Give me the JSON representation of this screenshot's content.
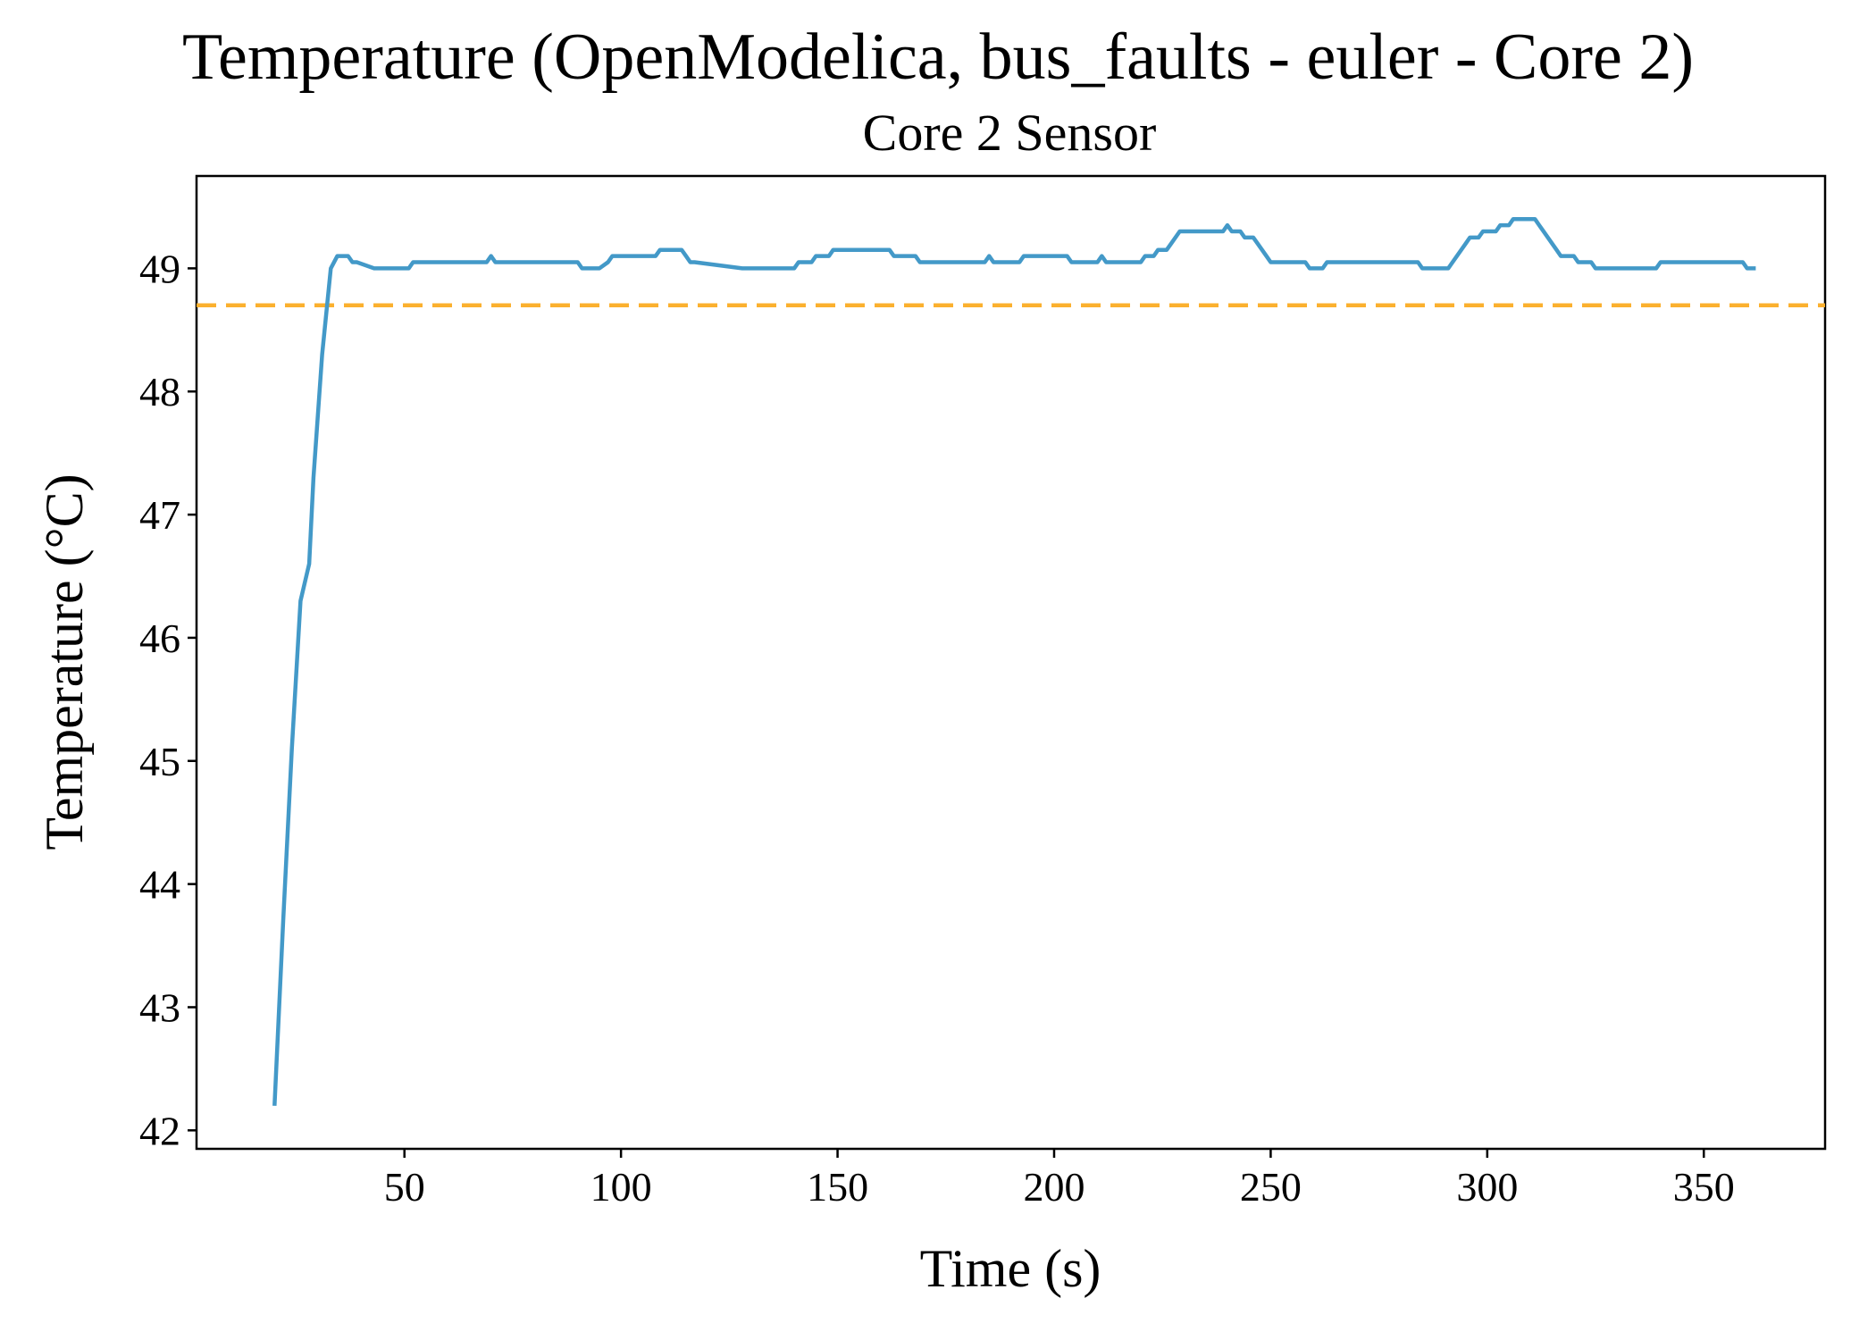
{
  "chart_data": {
    "type": "line",
    "title": "Temperature (OpenModelica, bus_faults - euler - Core 2)",
    "subtitle": "Core 2 Sensor",
    "xlabel": "Time (s)",
    "ylabel": "Temperature (°C)",
    "xlim": [
      2,
      378
    ],
    "ylim": [
      41.85,
      49.75
    ],
    "xticks": [
      50,
      100,
      150,
      200,
      250,
      300,
      350
    ],
    "yticks": [
      42,
      43,
      44,
      45,
      46,
      47,
      48,
      49
    ],
    "grid": false,
    "colors": {
      "series": "#4399c8",
      "threshold": "#fbb02e"
    },
    "threshold": {
      "y": 48.7,
      "style": "dashed"
    },
    "series": [
      {
        "x": [
          20,
          22,
          24,
          26,
          28,
          29,
          31,
          33,
          34.5,
          35.5,
          37,
          38,
          39,
          43,
          51,
          52,
          69,
          70,
          71,
          90,
          91,
          95,
          97,
          98,
          108,
          109,
          114,
          115,
          116,
          117,
          128,
          129,
          140,
          141,
          144,
          145,
          148,
          149,
          162,
          163,
          168,
          169,
          184,
          185,
          186,
          187,
          192,
          193,
          203,
          204,
          210,
          211,
          212,
          213,
          220,
          221,
          223,
          224,
          226,
          227,
          229,
          230,
          239,
          240,
          241,
          243,
          244,
          246,
          247,
          249,
          250,
          252,
          253,
          258,
          259,
          262,
          263,
          284,
          285,
          291,
          292,
          295,
          296,
          298,
          299,
          302,
          303,
          305,
          306,
          311,
          312,
          316,
          317,
          320,
          321,
          324,
          325,
          327,
          328,
          339,
          340,
          359,
          360,
          362
        ],
        "y": [
          42.2,
          43.7,
          45.1,
          46.3,
          46.6,
          47.3,
          48.3,
          49.0,
          49.1,
          49.1,
          49.1,
          49.05,
          49.05,
          49.0,
          49.0,
          49.05,
          49.05,
          49.1,
          49.05,
          49.05,
          49.0,
          49.0,
          49.05,
          49.1,
          49.1,
          49.15,
          49.15,
          49.1,
          49.05,
          49.05,
          49.0,
          49.0,
          49.0,
          49.05,
          49.05,
          49.1,
          49.1,
          49.15,
          49.15,
          49.1,
          49.1,
          49.05,
          49.05,
          49.1,
          49.05,
          49.05,
          49.05,
          49.1,
          49.1,
          49.05,
          49.05,
          49.1,
          49.05,
          49.05,
          49.05,
          49.1,
          49.1,
          49.15,
          49.15,
          49.2,
          49.3,
          49.3,
          49.3,
          49.35,
          49.3,
          49.3,
          49.25,
          49.25,
          49.2,
          49.1,
          49.05,
          49.05,
          49.05,
          49.05,
          49.0,
          49.0,
          49.05,
          49.05,
          49.0,
          49.0,
          49.05,
          49.2,
          49.25,
          49.25,
          49.3,
          49.3,
          49.35,
          49.35,
          49.4,
          49.4,
          49.35,
          49.15,
          49.1,
          49.1,
          49.05,
          49.05,
          49.0,
          49.0,
          49.0,
          49.0,
          49.05,
          49.05,
          49.0,
          49.0
        ]
      }
    ]
  }
}
